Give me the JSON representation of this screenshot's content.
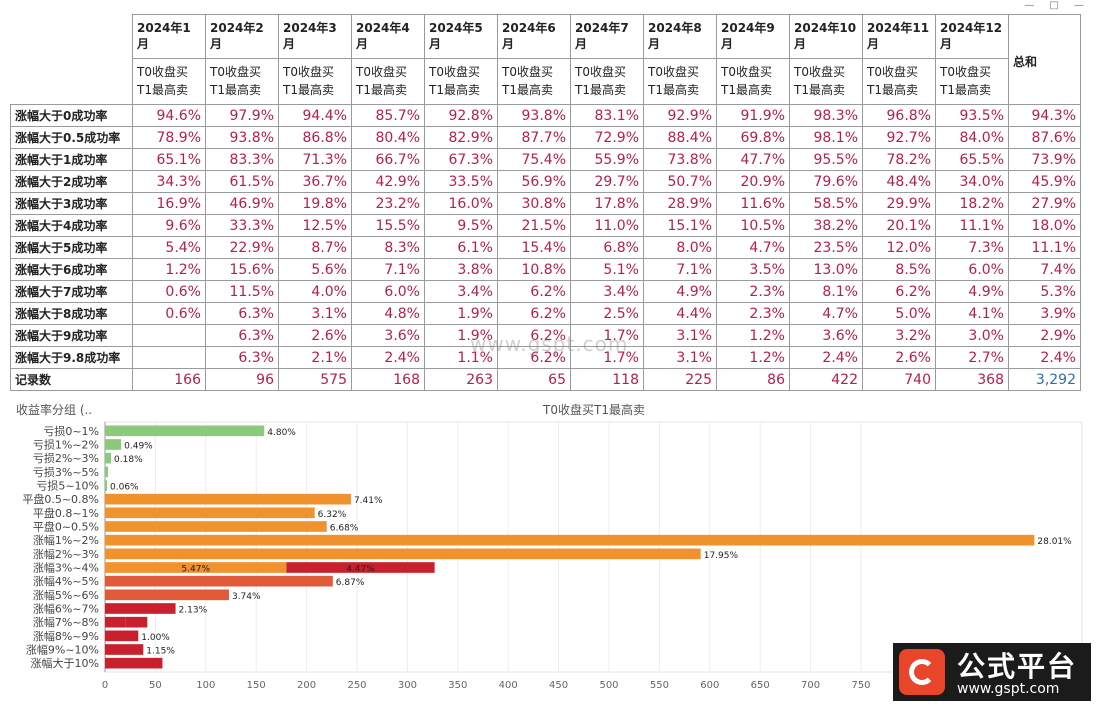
{
  "window_controls": "— □ —",
  "table": {
    "months": [
      "2024年1月",
      "2024年2月",
      "2024年3月",
      "2024年4月",
      "2024年5月",
      "2024年6月",
      "2024年7月",
      "2024年8月",
      "2024年9月",
      "2024年10月",
      "2024年11月",
      "2024年12月"
    ],
    "measure_label": "T0收盘买T1最高卖",
    "total_label": "总和",
    "rows": [
      {
        "label": "涨幅大于0成功率",
        "values": [
          "94.6%",
          "97.9%",
          "94.4%",
          "85.7%",
          "92.8%",
          "93.8%",
          "83.1%",
          "92.9%",
          "91.9%",
          "98.3%",
          "96.8%",
          "93.5%"
        ],
        "total": "94.3%"
      },
      {
        "label": "涨幅大于0.5成功率",
        "values": [
          "78.9%",
          "93.8%",
          "86.8%",
          "80.4%",
          "82.9%",
          "87.7%",
          "72.9%",
          "88.4%",
          "69.8%",
          "98.1%",
          "92.7%",
          "84.0%"
        ],
        "total": "87.6%"
      },
      {
        "label": "涨幅大于1成功率",
        "values": [
          "65.1%",
          "83.3%",
          "71.3%",
          "66.7%",
          "67.3%",
          "75.4%",
          "55.9%",
          "73.8%",
          "47.7%",
          "95.5%",
          "78.2%",
          "65.5%"
        ],
        "total": "73.9%"
      },
      {
        "label": "涨幅大于2成功率",
        "values": [
          "34.3%",
          "61.5%",
          "36.7%",
          "42.9%",
          "33.5%",
          "56.9%",
          "29.7%",
          "50.7%",
          "20.9%",
          "79.6%",
          "48.4%",
          "34.0%"
        ],
        "total": "45.9%"
      },
      {
        "label": "涨幅大于3成功率",
        "values": [
          "16.9%",
          "46.9%",
          "19.8%",
          "23.2%",
          "16.0%",
          "30.8%",
          "17.8%",
          "28.9%",
          "11.6%",
          "58.5%",
          "29.9%",
          "18.2%"
        ],
        "total": "27.9%"
      },
      {
        "label": "涨幅大于4成功率",
        "values": [
          "9.6%",
          "33.3%",
          "12.5%",
          "15.5%",
          "9.5%",
          "21.5%",
          "11.0%",
          "15.1%",
          "10.5%",
          "38.2%",
          "20.1%",
          "11.1%"
        ],
        "total": "18.0%"
      },
      {
        "label": "涨幅大于5成功率",
        "values": [
          "5.4%",
          "22.9%",
          "8.7%",
          "8.3%",
          "6.1%",
          "15.4%",
          "6.8%",
          "8.0%",
          "4.7%",
          "23.5%",
          "12.0%",
          "7.3%"
        ],
        "total": "11.1%"
      },
      {
        "label": "涨幅大于6成功率",
        "values": [
          "1.2%",
          "15.6%",
          "5.6%",
          "7.1%",
          "3.8%",
          "10.8%",
          "5.1%",
          "7.1%",
          "3.5%",
          "13.0%",
          "8.5%",
          "6.0%"
        ],
        "total": "7.4%"
      },
      {
        "label": "涨幅大于7成功率",
        "values": [
          "0.6%",
          "11.5%",
          "4.0%",
          "6.0%",
          "3.4%",
          "6.2%",
          "3.4%",
          "4.9%",
          "2.3%",
          "8.1%",
          "6.2%",
          "4.9%"
        ],
        "total": "5.3%"
      },
      {
        "label": "涨幅大于8成功率",
        "values": [
          "0.6%",
          "6.3%",
          "3.1%",
          "4.8%",
          "1.9%",
          "6.2%",
          "2.5%",
          "4.4%",
          "2.3%",
          "4.7%",
          "5.0%",
          "4.1%"
        ],
        "total": "3.9%"
      },
      {
        "label": "涨幅大于9成功率",
        "values": [
          "",
          "6.3%",
          "2.6%",
          "3.6%",
          "1.9%",
          "6.2%",
          "1.7%",
          "3.1%",
          "1.2%",
          "3.6%",
          "3.2%",
          "3.0%"
        ],
        "total": "2.9%"
      },
      {
        "label": "涨幅大于9.8成功率",
        "values": [
          "",
          "6.3%",
          "2.1%",
          "2.4%",
          "1.1%",
          "6.2%",
          "1.7%",
          "3.1%",
          "1.2%",
          "2.4%",
          "2.6%",
          "2.7%"
        ],
        "total": "2.4%"
      }
    ],
    "count_row": {
      "label": "记录数",
      "values": [
        "166",
        "96",
        "575",
        "168",
        "263",
        "65",
        "118",
        "225",
        "86",
        "422",
        "740",
        "368"
      ],
      "total": "3,292"
    }
  },
  "chart_data": {
    "type": "bar",
    "orientation": "horizontal",
    "title": "T0收盘买T1最高卖",
    "ylabel": "收益率分组 (..",
    "xlim": [
      0,
      900
    ],
    "xticks": [
      0,
      50,
      100,
      150,
      200,
      250,
      300,
      350,
      400,
      450,
      500,
      550,
      600,
      650,
      700,
      750
    ],
    "grid": true,
    "colors": {
      "loss": "#8cc97a",
      "flat": "#f0922e",
      "gain_low": "#f0922e",
      "gain_mid": "#e05a3a",
      "gain_high": "#c8202d"
    },
    "bars": [
      {
        "category": "亏损0~1%",
        "value": 158,
        "label": "4.80%",
        "color_key": "loss"
      },
      {
        "category": "亏损1%~2%",
        "value": 16,
        "label": "0.49%",
        "color_key": "loss"
      },
      {
        "category": "亏损2%~3%",
        "value": 6,
        "label": "0.18%",
        "color_key": "loss"
      },
      {
        "category": "亏损3%~5%",
        "value": 3,
        "label": "",
        "color_key": "loss"
      },
      {
        "category": "亏损5~10%",
        "value": 2,
        "label": "0.06%",
        "color_key": "loss"
      },
      {
        "category": "平盘0.5~0.8%",
        "value": 244,
        "label": "7.41%",
        "color_key": "flat"
      },
      {
        "category": "平盘0.8~1%",
        "value": 208,
        "label": "6.32%",
        "color_key": "flat"
      },
      {
        "category": "平盘0~0.5%",
        "value": 220,
        "label": "6.68%",
        "color_key": "flat"
      },
      {
        "category": "涨幅1%~2%",
        "value": 922,
        "label": "28.01%",
        "color_key": "gain_low"
      },
      {
        "category": "涨幅2%~3%",
        "value": 591,
        "label": "17.95%",
        "color_key": "gain_low"
      },
      {
        "category": "涨幅3%~4%",
        "value": 327,
        "label": "",
        "color_key": "gain_low",
        "segments": [
          {
            "value": 180,
            "label": "5.47%",
            "color_key": "gain_low"
          },
          {
            "value": 147,
            "label": "4.47%",
            "color_key": "gain_high"
          }
        ]
      },
      {
        "category": "涨幅4%~5%",
        "value": 226,
        "label": "6.87%",
        "color_key": "gain_mid"
      },
      {
        "category": "涨幅5%~6%",
        "value": 123,
        "label": "3.74%",
        "color_key": "gain_mid"
      },
      {
        "category": "涨幅6%~7%",
        "value": 70,
        "label": "2.13%",
        "color_key": "gain_high"
      },
      {
        "category": "涨幅7%~8%",
        "value": 42,
        "label": "",
        "color_key": "gain_high",
        "segments": [
          {
            "value": 20,
            "label": "",
            "color_key": "gain_high"
          },
          {
            "value": 22,
            "label": "",
            "color_key": "gain_high"
          }
        ]
      },
      {
        "category": "涨幅8%~9%",
        "value": 33,
        "label": "1.00%",
        "color_key": "gain_high"
      },
      {
        "category": "涨幅9%~10%",
        "value": 38,
        "label": "1.15%",
        "color_key": "gain_high"
      },
      {
        "category": "涨幅大于10%",
        "value": 57,
        "label": "",
        "color_key": "gain_high"
      }
    ]
  },
  "watermark": {
    "url": "www.gspt.com"
  },
  "logo": {
    "name": "公式平台",
    "site": "www.gspt.com"
  }
}
